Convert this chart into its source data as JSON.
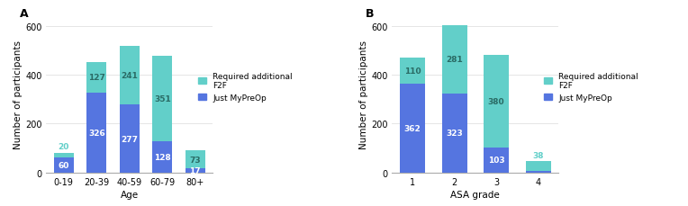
{
  "panel_a": {
    "categories": [
      "0-19",
      "20-39",
      "40-59",
      "60-79",
      "80+"
    ],
    "just_mypreop": [
      60,
      326,
      277,
      128,
      17
    ],
    "required_f2f": [
      20,
      127,
      241,
      351,
      73
    ],
    "xlabel": "Age",
    "ylabel": "Number of participants",
    "ylim": [
      0,
      640
    ],
    "yticks": [
      0,
      200,
      400,
      600
    ],
    "label": "A"
  },
  "panel_b": {
    "categories": [
      "1",
      "2",
      "3",
      "4"
    ],
    "just_mypreop": [
      362,
      323,
      103,
      7
    ],
    "required_f2f": [
      110,
      281,
      380,
      38
    ],
    "xlabel": "ASA grade",
    "ylabel": "Number of participants",
    "ylim": [
      0,
      640
    ],
    "yticks": [
      0,
      200,
      400,
      600
    ],
    "label": "B"
  },
  "color_mypreop": "#5575e0",
  "color_f2f": "#62cfc9",
  "legend_labels": [
    "Required additional\nF2F",
    "Just MyPreOp"
  ],
  "background_color": "#ffffff",
  "bar_width": 0.6,
  "label_fontsize": 7.5,
  "tick_fontsize": 7,
  "annotation_fontsize": 6.5
}
